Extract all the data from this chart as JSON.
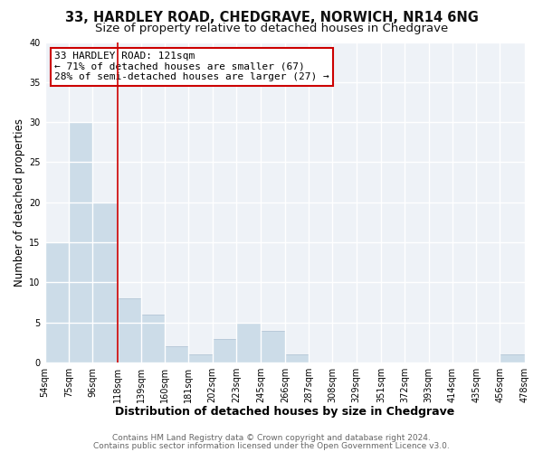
{
  "title1": "33, HARDLEY ROAD, CHEDGRAVE, NORWICH, NR14 6NG",
  "title2": "Size of property relative to detached houses in Chedgrave",
  "xlabel": "Distribution of detached houses by size in Chedgrave",
  "ylabel": "Number of detached properties",
  "bin_edges": [
    54,
    75,
    96,
    118,
    139,
    160,
    181,
    202,
    223,
    245,
    266,
    287,
    308,
    329,
    351,
    372,
    393,
    414,
    435,
    456,
    478
  ],
  "bin_labels": [
    "54sqm",
    "75sqm",
    "96sqm",
    "118sqm",
    "139sqm",
    "160sqm",
    "181sqm",
    "202sqm",
    "223sqm",
    "245sqm",
    "266sqm",
    "287sqm",
    "308sqm",
    "329sqm",
    "351sqm",
    "372sqm",
    "393sqm",
    "414sqm",
    "435sqm",
    "456sqm",
    "478sqm"
  ],
  "counts": [
    15,
    30,
    20,
    8,
    6,
    2,
    1,
    3,
    5,
    4,
    1,
    0,
    0,
    0,
    0,
    0,
    0,
    0,
    0,
    1,
    0
  ],
  "bar_color": "#ccdce8",
  "bar_edge_color": "#aabfd0",
  "vline_x": 118,
  "vline_color": "#cc0000",
  "annotation_line1": "33 HARDLEY ROAD: 121sqm",
  "annotation_line2": "← 71% of detached houses are smaller (67)",
  "annotation_line3": "28% of semi-detached houses are larger (27) →",
  "annotation_box_color": "#cc0000",
  "ylim": [
    0,
    40
  ],
  "yticks": [
    0,
    5,
    10,
    15,
    20,
    25,
    30,
    35,
    40
  ],
  "footer1": "Contains HM Land Registry data © Crown copyright and database right 2024.",
  "footer2": "Contains public sector information licensed under the Open Government Licence v3.0.",
  "bg_color": "#ffffff",
  "plot_bg_color": "#eef2f7",
  "grid_color": "#ffffff",
  "title1_fontsize": 10.5,
  "title2_fontsize": 9.5,
  "xlabel_fontsize": 9,
  "ylabel_fontsize": 8.5,
  "tick_fontsize": 7,
  "footer_fontsize": 6.5,
  "annotation_fontsize": 8
}
